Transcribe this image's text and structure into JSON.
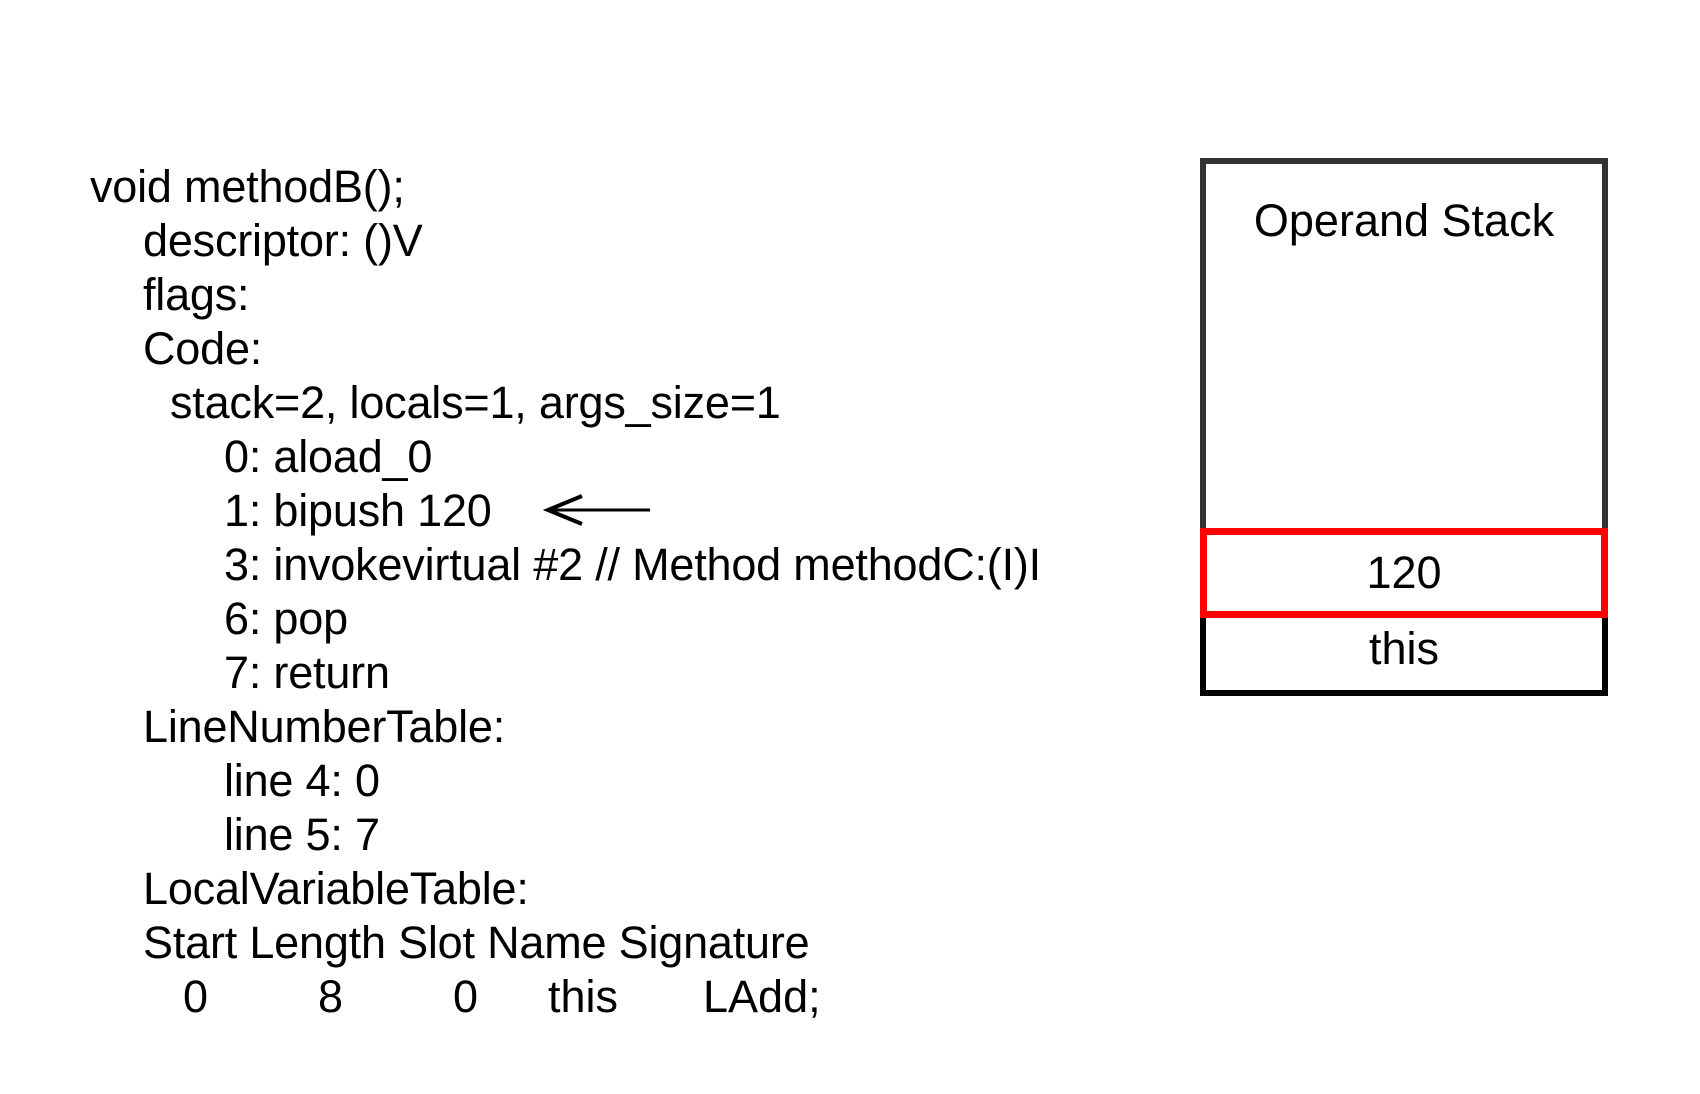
{
  "code": {
    "lines": [
      "void methodB();",
      "descriptor: ()V",
      "flags:",
      "Code:",
      "stack=2, locals=1, args_size=1",
      "0: aload_0",
      "1: bipush 120",
      "3: invokevirtual #2 // Method methodC:(I)I",
      "6: pop",
      "7: return",
      "LineNumberTable:",
      "line 4: 0",
      "line 5: 7",
      "LocalVariableTable:",
      "Start Length Slot Name Signature"
    ],
    "local_variable_row": [
      "0",
      "8",
      "0",
      "this",
      "LAdd;"
    ]
  },
  "current_instruction_arrow": "arrow-left-icon",
  "operand_stack": {
    "title": "Operand Stack",
    "slots": [
      "120",
      "this"
    ],
    "highlight_color": "#ff0000"
  }
}
